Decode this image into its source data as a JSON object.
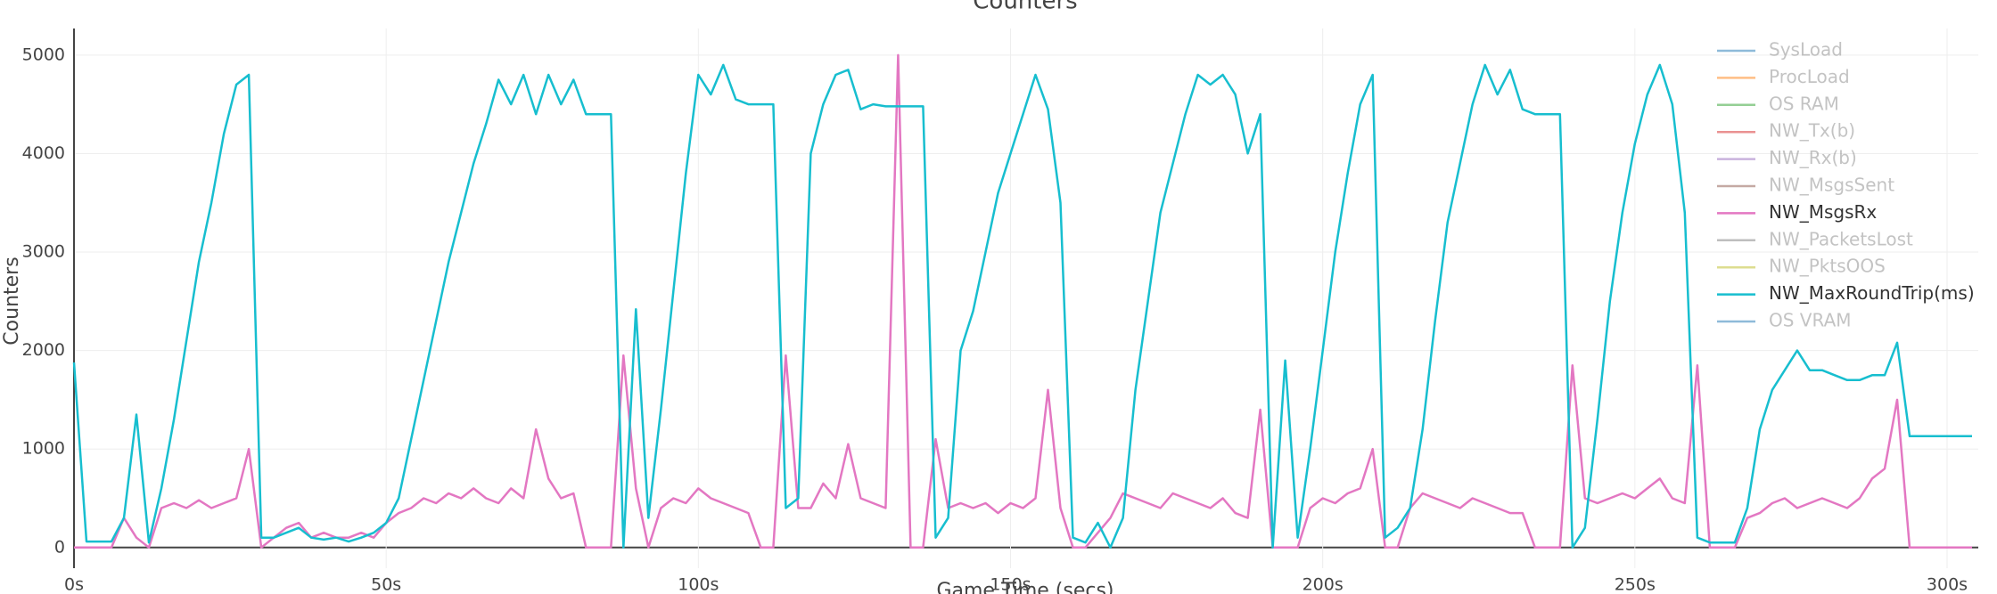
{
  "chart_data": {
    "type": "line",
    "title": "Counters",
    "x_label": "Game Time (secs)",
    "y_label": "Counters",
    "grid": true,
    "legend": "top-right",
    "xlim": [
      0,
      305
    ],
    "ylim": [
      -210,
      5270
    ],
    "xticks": [
      {
        "value": 0,
        "label": "0s"
      },
      {
        "value": 50,
        "label": "50s"
      },
      {
        "value": 100,
        "label": "100s"
      },
      {
        "value": 150,
        "label": "150s"
      },
      {
        "value": 200,
        "label": "200s"
      },
      {
        "value": 250,
        "label": "250s"
      },
      {
        "value": 300,
        "label": "300s"
      }
    ],
    "yticks": [
      0,
      1000,
      2000,
      3000,
      4000,
      5000
    ],
    "x": [
      0,
      2,
      4,
      6,
      8,
      10,
      12,
      14,
      16,
      18,
      20,
      22,
      24,
      26,
      28,
      30,
      32,
      34,
      36,
      38,
      40,
      42,
      44,
      46,
      48,
      50,
      52,
      54,
      56,
      58,
      60,
      62,
      64,
      66,
      68,
      70,
      72,
      74,
      76,
      78,
      80,
      82,
      84,
      86,
      88,
      90,
      92,
      94,
      96,
      98,
      100,
      102,
      104,
      106,
      108,
      110,
      112,
      114,
      116,
      118,
      120,
      122,
      124,
      126,
      128,
      130,
      132,
      134,
      136,
      138,
      140,
      142,
      144,
      146,
      148,
      150,
      152,
      154,
      156,
      158,
      160,
      162,
      164,
      166,
      168,
      170,
      172,
      174,
      176,
      178,
      180,
      182,
      184,
      186,
      188,
      190,
      192,
      194,
      196,
      198,
      200,
      202,
      204,
      206,
      208,
      210,
      212,
      214,
      216,
      218,
      220,
      222,
      224,
      226,
      228,
      230,
      232,
      234,
      236,
      238,
      240,
      242,
      244,
      246,
      248,
      250,
      252,
      254,
      256,
      258,
      260,
      262,
      264,
      266,
      268,
      270,
      272,
      274,
      276,
      278,
      280,
      282,
      284,
      286,
      288,
      290,
      292,
      294,
      296,
      298,
      300,
      302,
      304
    ],
    "series": [
      {
        "name": "SysLoad",
        "color": "#1f77b4",
        "visible": false
      },
      {
        "name": "ProcLoad",
        "color": "#ff7f0e",
        "visible": false
      },
      {
        "name": "OS RAM",
        "color": "#2ca02c",
        "visible": false
      },
      {
        "name": "NW_Tx(b)",
        "color": "#d62728",
        "visible": false
      },
      {
        "name": "NW_Rx(b)",
        "color": "#9467bd",
        "visible": false
      },
      {
        "name": "NW_MsgsSent",
        "color": "#8c564b",
        "visible": false
      },
      {
        "name": "NW_MsgsRx",
        "color": "#e377c2",
        "visible": true,
        "values": [
          0,
          0,
          0,
          0,
          300,
          100,
          0,
          400,
          450,
          400,
          480,
          400,
          450,
          500,
          1000,
          0,
          100,
          200,
          250,
          100,
          150,
          100,
          100,
          150,
          100,
          250,
          350,
          400,
          500,
          450,
          550,
          500,
          600,
          500,
          450,
          600,
          500,
          1200,
          700,
          500,
          550,
          0,
          0,
          0,
          1950,
          600,
          0,
          400,
          500,
          450,
          600,
          500,
          450,
          400,
          350,
          0,
          0,
          1950,
          400,
          400,
          650,
          500,
          1050,
          500,
          450,
          400,
          5000,
          0,
          0,
          1100,
          400,
          450,
          400,
          450,
          350,
          450,
          400,
          500,
          1600,
          400,
          0,
          0,
          150,
          300,
          550,
          500,
          450,
          400,
          550,
          500,
          450,
          400,
          500,
          350,
          300,
          1400,
          0,
          0,
          0,
          400,
          500,
          450,
          550,
          600,
          1000,
          0,
          0,
          400,
          550,
          500,
          450,
          400,
          500,
          450,
          400,
          350,
          350,
          0,
          0,
          0,
          1850,
          500,
          450,
          500,
          550,
          500,
          600,
          700,
          500,
          450,
          1850,
          0,
          0,
          0,
          300,
          350,
          450,
          500,
          400,
          450,
          500,
          450,
          400,
          500,
          700,
          800,
          1500,
          0,
          0,
          0,
          0,
          0,
          0
        ]
      },
      {
        "name": "NW_PacketsLost",
        "color": "#7f7f7f",
        "visible": false
      },
      {
        "name": "NW_PktsOOS",
        "color": "#bcbd22",
        "visible": false
      },
      {
        "name": "NW_MaxRoundTrip(ms)",
        "color": "#17becf",
        "visible": true,
        "values": [
          1880,
          60,
          60,
          60,
          300,
          1350,
          50,
          600,
          1300,
          2100,
          2900,
          3500,
          4200,
          4700,
          4800,
          100,
          100,
          150,
          200,
          100,
          80,
          100,
          60,
          100,
          150,
          250,
          500,
          1100,
          1700,
          2300,
          2900,
          3400,
          3900,
          4300,
          4750,
          4500,
          4800,
          4400,
          4800,
          4500,
          4750,
          4400,
          4400,
          4400,
          0,
          2420,
          300,
          1400,
          2600,
          3800,
          4800,
          4600,
          4900,
          4550,
          4500,
          4500,
          4500,
          400,
          500,
          4000,
          4500,
          4800,
          4850,
          4450,
          4500,
          4480,
          4480,
          4480,
          4480,
          100,
          300,
          2000,
          2400,
          3000,
          3600,
          4000,
          4400,
          4800,
          4450,
          3500,
          100,
          50,
          250,
          0,
          300,
          1600,
          2500,
          3400,
          3900,
          4400,
          4800,
          4700,
          4800,
          4600,
          4000,
          4400,
          0,
          1900,
          100,
          1000,
          2000,
          3000,
          3800,
          4500,
          4800,
          100,
          200,
          400,
          1200,
          2300,
          3300,
          3900,
          4500,
          4900,
          4600,
          4850,
          4450,
          4400,
          4400,
          4400,
          0,
          200,
          1300,
          2500,
          3400,
          4100,
          4600,
          4900,
          4500,
          3400,
          100,
          50,
          50,
          50,
          400,
          1200,
          1600,
          1800,
          2000,
          1800,
          1800,
          1750,
          1700,
          1700,
          1750,
          1750,
          2080,
          1130,
          1130,
          1130,
          1130,
          1130,
          1130
        ]
      },
      {
        "name": "OS VRAM",
        "color": "#1f77b4",
        "visible": false
      }
    ]
  }
}
